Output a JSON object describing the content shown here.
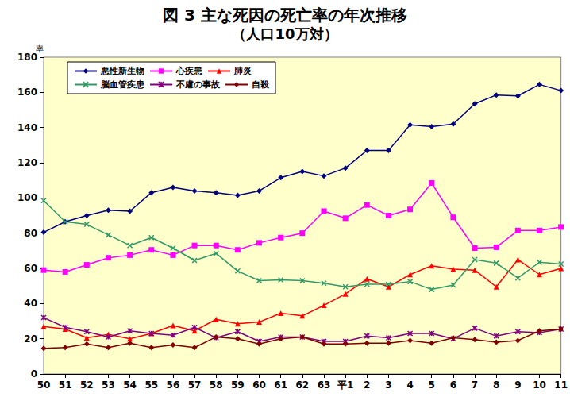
{
  "chart_data": {
    "type": "line",
    "title": "図 3 主な死因の死亡率の年次推移",
    "subtitle": "（人口10万対）",
    "y_label": "率",
    "categories": [
      "50",
      "51",
      "52",
      "53",
      "54",
      "55",
      "56",
      "57",
      "58",
      "59",
      "60",
      "61",
      "62",
      "63",
      "平1",
      "2",
      "3",
      "4",
      "5",
      "6",
      "7",
      "8",
      "9",
      "10",
      "11"
    ],
    "ylim": [
      0,
      180
    ],
    "yticks": [
      0,
      20,
      40,
      60,
      80,
      100,
      120,
      140,
      160,
      180
    ],
    "grid": false,
    "legend": "upper left",
    "series": [
      {
        "name": "悪性新生物",
        "color": "#000080",
        "marker": "diamond",
        "values": [
          80.5,
          86.5,
          90,
          93,
          92.5,
          103,
          106,
          104,
          103,
          101.5,
          104,
          111.5,
          115,
          112.5,
          117,
          127,
          127,
          141.5,
          140.5,
          142,
          153.5,
          158.5,
          158,
          164.5,
          161
        ]
      },
      {
        "name": "心疾患",
        "color": "#ff00ff",
        "marker": "square",
        "values": [
          59,
          58,
          62,
          66,
          67.5,
          70.5,
          67.5,
          73,
          73,
          70.5,
          74.5,
          77.5,
          80,
          92.5,
          88.5,
          96,
          90,
          93.5,
          108.5,
          89,
          71.5,
          72,
          81.5,
          81.5,
          83.5
        ]
      },
      {
        "name": "肺炎",
        "color": "#ff0000",
        "marker": "triangle",
        "values": [
          27,
          25.5,
          20.5,
          22.5,
          20,
          23,
          27.5,
          24.5,
          31,
          28.5,
          29.5,
          34.5,
          33,
          39,
          45.5,
          54,
          49.5,
          56.5,
          61.5,
          59.5,
          59,
          49.5,
          65,
          56.5,
          60
        ]
      },
      {
        "name": "脳血管疾患",
        "color": "#339966",
        "marker": "x",
        "values": [
          98.5,
          86.5,
          85,
          79,
          73,
          77.5,
          71.5,
          64.5,
          68.5,
          58.5,
          53,
          53.5,
          53,
          51.5,
          49.5,
          51,
          51,
          52.5,
          48,
          50.5,
          65,
          63,
          54.5,
          63.5,
          62.5
        ]
      },
      {
        "name": "不慮の事故",
        "color": "#800080",
        "marker": "star",
        "values": [
          32,
          26.5,
          24,
          21,
          24.5,
          23,
          22,
          26.5,
          20.5,
          24,
          18.5,
          21,
          21,
          18.5,
          18.5,
          21.5,
          20.5,
          23,
          23,
          20,
          26,
          21.5,
          24,
          23.5,
          25.5
        ]
      },
      {
        "name": "自殺",
        "color": "#800000",
        "marker": "diamond",
        "values": [
          14.5,
          15,
          17,
          15,
          17.5,
          15,
          16.5,
          15,
          21,
          20,
          17,
          20,
          21,
          17,
          17,
          17.5,
          17.5,
          19,
          17.5,
          20.5,
          19.5,
          18,
          19,
          24.5,
          25.5
        ]
      }
    ]
  }
}
